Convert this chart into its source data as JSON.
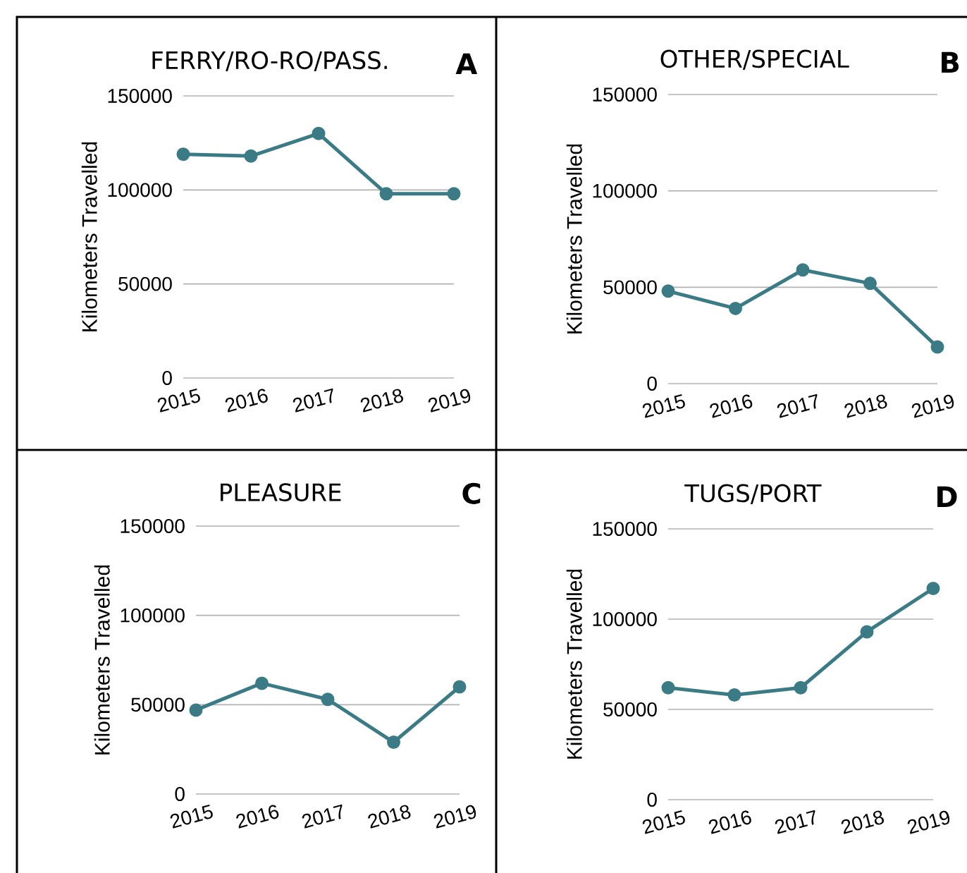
{
  "chart_data": [
    {
      "type": "line",
      "title": "FERRY/RO-RO/PASS.",
      "ylabel": "Kilometers Travelled",
      "annotations": [
        "A"
      ],
      "categories": [
        "2015",
        "2016",
        "2017",
        "2018",
        "2019"
      ],
      "values": [
        119000,
        118000,
        130000,
        98000,
        98000
      ],
      "color": "#3b7b86",
      "ylim": [
        0,
        150000
      ],
      "yticks": [
        0,
        50000,
        100000,
        150000
      ],
      "grid": "y",
      "marker": "circle",
      "line_style": "solid"
    },
    {
      "type": "line",
      "title": "OTHER/SPECIAL",
      "ylabel": "Kilometers Travelled",
      "annotations": [
        "B"
      ],
      "categories": [
        "2015",
        "2016",
        "2017",
        "2018",
        "2019"
      ],
      "values": [
        48000,
        39000,
        59000,
        52000,
        19000
      ],
      "color": "#3b7b86",
      "ylim": [
        0,
        150000
      ],
      "yticks": [
        0,
        50000,
        100000,
        150000
      ],
      "grid": "y",
      "marker": "circle",
      "line_style": "solid"
    },
    {
      "type": "line",
      "title": "PLEASURE",
      "ylabel": "Kilometers Travelled",
      "annotations": [
        "C"
      ],
      "categories": [
        "2015",
        "2016",
        "2017",
        "2018",
        "2019"
      ],
      "values": [
        47000,
        62000,
        53000,
        29000,
        60000
      ],
      "color": "#3b7b86",
      "ylim": [
        0,
        150000
      ],
      "yticks": [
        0,
        50000,
        100000,
        150000
      ],
      "grid": "y",
      "marker": "circle",
      "line_style": "solid"
    },
    {
      "type": "line",
      "title": "TUGS/PORT",
      "ylabel": "Kilometers Travelled",
      "annotations": [
        "D"
      ],
      "categories": [
        "2015",
        "2016",
        "2017",
        "2018",
        "2019"
      ],
      "values": [
        62000,
        58000,
        62000,
        93000,
        117000
      ],
      "color": "#3b7b86",
      "ylim": [
        0,
        150000
      ],
      "yticks": [
        0,
        50000,
        100000,
        150000
      ],
      "grid": "y",
      "marker": "circle",
      "line_style": "solid"
    }
  ]
}
